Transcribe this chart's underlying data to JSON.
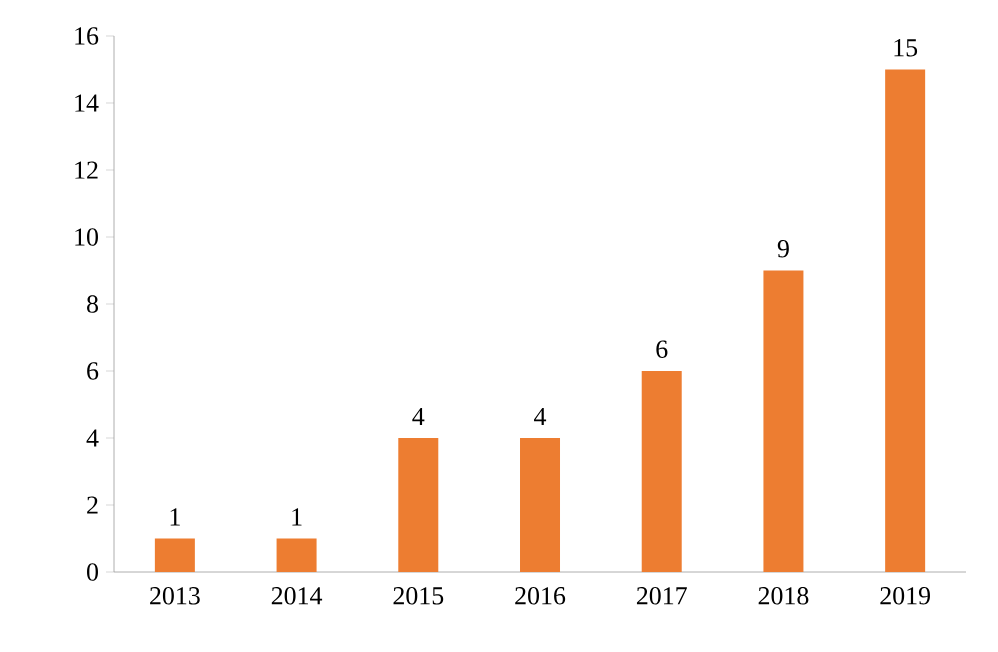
{
  "chart_data": {
    "type": "bar",
    "categories": [
      "2013",
      "2014",
      "2015",
      "2016",
      "2017",
      "2018",
      "2019"
    ],
    "values": [
      1,
      1,
      4,
      4,
      6,
      9,
      15
    ],
    "color": "#ed7d31",
    "ylim": [
      0,
      16
    ],
    "yticks": [
      0,
      2,
      4,
      6,
      8,
      10,
      12,
      14,
      16
    ],
    "data_labels": true,
    "grid": false
  }
}
